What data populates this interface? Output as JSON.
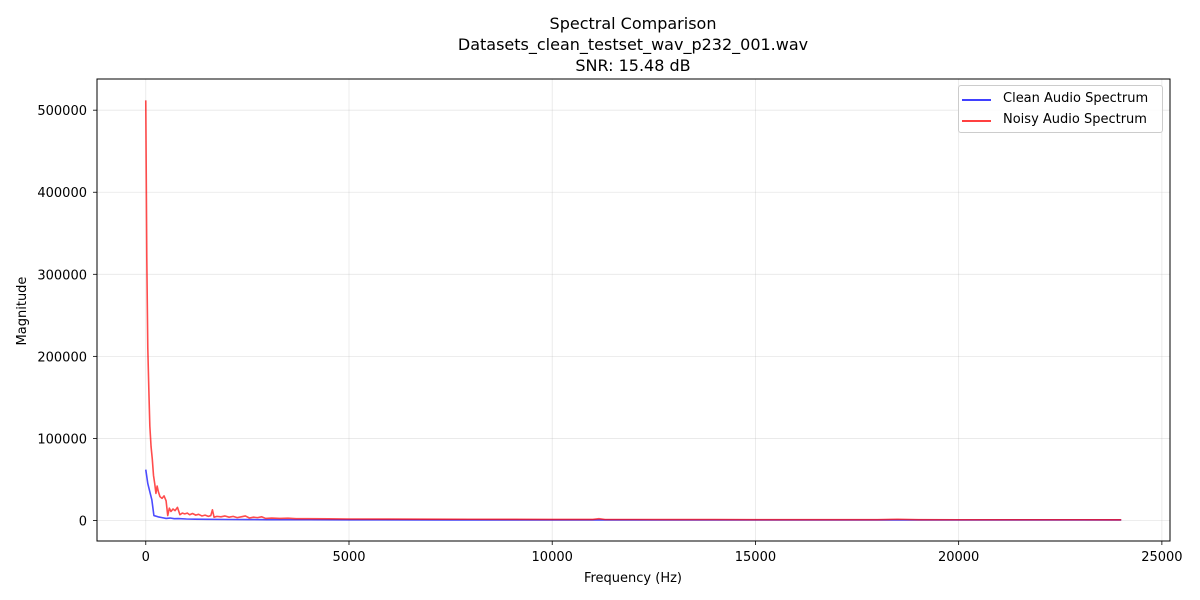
{
  "chart_data": {
    "type": "line",
    "title": "Spectral Comparison",
    "subtitle": "Datasets_clean_testset_wav_p232_001.wav",
    "snr_text": "SNR: 15.48 dB",
    "xlabel": "Frequency (Hz)",
    "ylabel": "Magnitude",
    "xlim": [
      -1200,
      25200
    ],
    "ylim": [
      -25000,
      538000
    ],
    "xticks": [
      0,
      5000,
      10000,
      15000,
      20000,
      25000
    ],
    "yticks": [
      0,
      100000,
      200000,
      300000,
      400000,
      500000
    ],
    "grid": true,
    "legend_position": "top-right",
    "series": [
      {
        "name": "Clean Audio Spectrum",
        "color": "#0000ff",
        "points": [
          [
            0,
            62000
          ],
          [
            50,
            45000
          ],
          [
            100,
            35000
          ],
          [
            150,
            25000
          ],
          [
            200,
            6000
          ],
          [
            300,
            4500
          ],
          [
            400,
            3500
          ],
          [
            500,
            2500
          ],
          [
            600,
            3000
          ],
          [
            700,
            2200
          ],
          [
            800,
            2400
          ],
          [
            1000,
            1800
          ],
          [
            1200,
            1600
          ],
          [
            1500,
            1400
          ],
          [
            2000,
            1200
          ],
          [
            2500,
            1100
          ],
          [
            3000,
            1000
          ],
          [
            4000,
            900
          ],
          [
            5000,
            800
          ],
          [
            7500,
            700
          ],
          [
            10000,
            650
          ],
          [
            12500,
            600
          ],
          [
            15000,
            600
          ],
          [
            17500,
            600
          ],
          [
            20000,
            600
          ],
          [
            22500,
            650
          ],
          [
            24000,
            700
          ]
        ]
      },
      {
        "name": "Noisy Audio Spectrum",
        "color": "#ff0000",
        "points": [
          [
            0,
            512000
          ],
          [
            25,
            320000
          ],
          [
            50,
            210000
          ],
          [
            75,
            160000
          ],
          [
            100,
            115000
          ],
          [
            130,
            90000
          ],
          [
            160,
            75000
          ],
          [
            190,
            55000
          ],
          [
            220,
            45000
          ],
          [
            250,
            33000
          ],
          [
            280,
            42000
          ],
          [
            310,
            35000
          ],
          [
            350,
            29000
          ],
          [
            400,
            27000
          ],
          [
            450,
            30000
          ],
          [
            500,
            24000
          ],
          [
            540,
            6000
          ],
          [
            580,
            15000
          ],
          [
            620,
            11000
          ],
          [
            670,
            14000
          ],
          [
            720,
            12000
          ],
          [
            780,
            16000
          ],
          [
            840,
            7000
          ],
          [
            900,
            9000
          ],
          [
            960,
            8000
          ],
          [
            1020,
            9000
          ],
          [
            1080,
            7000
          ],
          [
            1150,
            8500
          ],
          [
            1230,
            6500
          ],
          [
            1300,
            7500
          ],
          [
            1380,
            5500
          ],
          [
            1460,
            6500
          ],
          [
            1540,
            5000
          ],
          [
            1600,
            6000
          ],
          [
            1640,
            13000
          ],
          [
            1680,
            4000
          ],
          [
            1750,
            5000
          ],
          [
            1850,
            4500
          ],
          [
            1950,
            5500
          ],
          [
            2050,
            4000
          ],
          [
            2150,
            5000
          ],
          [
            2250,
            3500
          ],
          [
            2350,
            4500
          ],
          [
            2450,
            5500
          ],
          [
            2550,
            3000
          ],
          [
            2650,
            4000
          ],
          [
            2750,
            3500
          ],
          [
            2850,
            4500
          ],
          [
            2950,
            2500
          ],
          [
            3100,
            3000
          ],
          [
            3300,
            2500
          ],
          [
            3500,
            2800
          ],
          [
            3700,
            2200
          ],
          [
            4000,
            2200
          ],
          [
            4500,
            2000
          ],
          [
            5000,
            1800
          ],
          [
            6000,
            1700
          ],
          [
            7000,
            1600
          ],
          [
            8000,
            1500
          ],
          [
            9000,
            1400
          ],
          [
            10000,
            1300
          ],
          [
            11000,
            1300
          ],
          [
            11150,
            2200
          ],
          [
            11300,
            1200
          ],
          [
            12000,
            1200
          ],
          [
            13000,
            1100
          ],
          [
            14000,
            1100
          ],
          [
            15000,
            1000
          ],
          [
            16000,
            1000
          ],
          [
            17000,
            1000
          ],
          [
            18000,
            1000
          ],
          [
            18500,
            1500
          ],
          [
            19000,
            1000
          ],
          [
            20000,
            900
          ],
          [
            21000,
            900
          ],
          [
            22000,
            900
          ],
          [
            23000,
            900
          ],
          [
            24000,
            800
          ]
        ]
      }
    ]
  }
}
